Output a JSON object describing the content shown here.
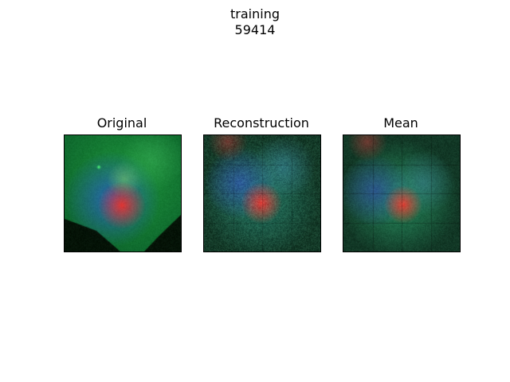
{
  "figure": {
    "suptitle_line1": "training",
    "suptitle_line2": "59414"
  },
  "panels": [
    {
      "title": "Original"
    },
    {
      "title": "Reconstruction"
    },
    {
      "title": "Mean"
    }
  ]
}
